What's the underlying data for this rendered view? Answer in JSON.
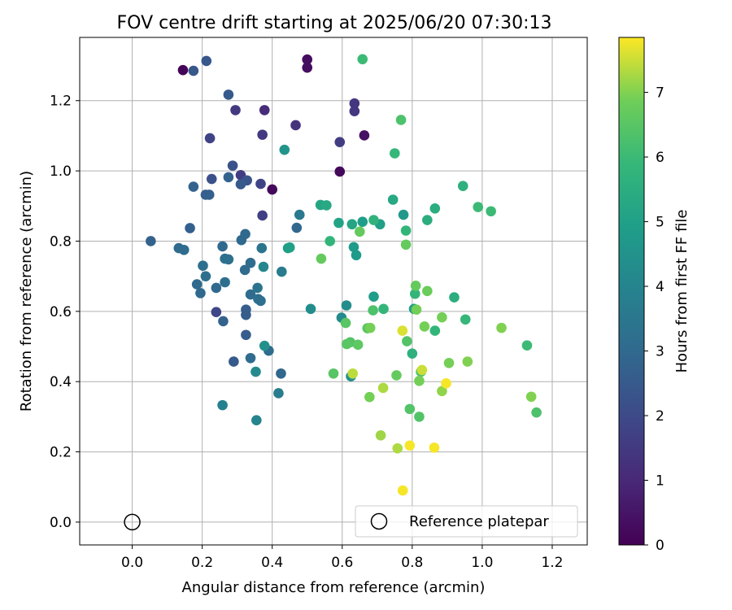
{
  "chart_data": {
    "type": "scatter",
    "title": "FOV centre drift starting at 2025/06/20 07:30:13",
    "xlabel": "Angular distance from reference (arcmin)",
    "ylabel": "Rotation from reference (arcmin)",
    "xlim": [
      -0.15,
      1.3
    ],
    "ylim": [
      -0.065,
      1.38
    ],
    "xticks": [
      "0.0",
      "0.2",
      "0.4",
      "0.6",
      "0.8",
      "1.0",
      "1.2"
    ],
    "yticks": [
      "0.0",
      "0.2",
      "0.4",
      "0.6",
      "0.8",
      "1.0",
      "1.2"
    ],
    "grid": true,
    "colorbar": {
      "label": "Hours from first FF file",
      "range": [
        0,
        7.85
      ],
      "ticks": [
        "0",
        "1",
        "2",
        "3",
        "4",
        "5",
        "6",
        "7"
      ],
      "colormap": "viridis"
    },
    "reference": {
      "label": "Reference platepar",
      "x": 0.0,
      "y": 0.0,
      "marker": "open-circle"
    },
    "legend_position": "lower-right",
    "points": [
      {
        "x": 0.145,
        "y": 1.287,
        "c": 0.1
      },
      {
        "x": 0.5,
        "y": 1.317,
        "c": 0.3
      },
      {
        "x": 0.5,
        "y": 1.294,
        "c": 0.3
      },
      {
        "x": 0.593,
        "y": 0.998,
        "c": 0.2
      },
      {
        "x": 0.4,
        "y": 0.947,
        "c": 0.2
      },
      {
        "x": 0.663,
        "y": 1.101,
        "c": 0.4
      },
      {
        "x": 0.378,
        "y": 1.173,
        "c": 1.1
      },
      {
        "x": 0.467,
        "y": 1.13,
        "c": 1.3
      },
      {
        "x": 0.635,
        "y": 1.192,
        "c": 1.4
      },
      {
        "x": 0.635,
        "y": 1.17,
        "c": 1.4
      },
      {
        "x": 0.295,
        "y": 1.173,
        "c": 1.5
      },
      {
        "x": 0.372,
        "y": 1.103,
        "c": 1.5
      },
      {
        "x": 0.593,
        "y": 1.082,
        "c": 1.6
      },
      {
        "x": 0.31,
        "y": 0.988,
        "c": 1.6
      },
      {
        "x": 0.372,
        "y": 0.873,
        "c": 1.7
      },
      {
        "x": 0.222,
        "y": 1.093,
        "c": 1.8
      },
      {
        "x": 0.367,
        "y": 0.963,
        "c": 1.8
      },
      {
        "x": 0.24,
        "y": 0.598,
        "c": 1.9
      },
      {
        "x": 0.287,
        "y": 1.015,
        "c": 2.2
      },
      {
        "x": 0.227,
        "y": 0.977,
        "c": 2.2
      },
      {
        "x": 0.328,
        "y": 0.973,
        "c": 2.3
      },
      {
        "x": 0.175,
        "y": 1.285,
        "c": 2.4
      },
      {
        "x": 0.212,
        "y": 1.313,
        "c": 2.4
      },
      {
        "x": 0.275,
        "y": 1.217,
        "c": 2.5
      },
      {
        "x": 0.31,
        "y": 0.962,
        "c": 2.5
      },
      {
        "x": 0.29,
        "y": 0.457,
        "c": 2.5
      },
      {
        "x": 0.325,
        "y": 0.533,
        "c": 2.6
      },
      {
        "x": 0.325,
        "y": 0.59,
        "c": 2.6
      },
      {
        "x": 0.325,
        "y": 0.605,
        "c": 2.6
      },
      {
        "x": 0.165,
        "y": 0.837,
        "c": 2.7
      },
      {
        "x": 0.21,
        "y": 0.932,
        "c": 2.7
      },
      {
        "x": 0.22,
        "y": 0.932,
        "c": 2.7
      },
      {
        "x": 0.175,
        "y": 0.955,
        "c": 2.8
      },
      {
        "x": 0.275,
        "y": 0.982,
        "c": 2.8
      },
      {
        "x": 0.053,
        "y": 0.8,
        "c": 2.8
      },
      {
        "x": 0.26,
        "y": 0.572,
        "c": 2.8
      },
      {
        "x": 0.425,
        "y": 0.423,
        "c": 2.9
      },
      {
        "x": 0.47,
        "y": 0.838,
        "c": 2.9
      },
      {
        "x": 0.185,
        "y": 0.677,
        "c": 3.0
      },
      {
        "x": 0.195,
        "y": 0.652,
        "c": 3.0
      },
      {
        "x": 0.24,
        "y": 0.667,
        "c": 3.0
      },
      {
        "x": 0.258,
        "y": 0.785,
        "c": 3.0
      },
      {
        "x": 0.323,
        "y": 0.82,
        "c": 3.0
      },
      {
        "x": 0.312,
        "y": 0.803,
        "c": 3.0
      },
      {
        "x": 0.133,
        "y": 0.78,
        "c": 3.1
      },
      {
        "x": 0.148,
        "y": 0.775,
        "c": 3.1
      },
      {
        "x": 0.322,
        "y": 0.718,
        "c": 3.1
      },
      {
        "x": 0.338,
        "y": 0.738,
        "c": 3.1
      },
      {
        "x": 0.338,
        "y": 0.648,
        "c": 3.1
      },
      {
        "x": 0.338,
        "y": 0.467,
        "c": 3.1
      },
      {
        "x": 0.39,
        "y": 0.488,
        "c": 3.1
      },
      {
        "x": 0.36,
        "y": 0.635,
        "c": 3.2
      },
      {
        "x": 0.367,
        "y": 0.63,
        "c": 3.2
      },
      {
        "x": 0.21,
        "y": 0.7,
        "c": 3.2
      },
      {
        "x": 0.202,
        "y": 0.73,
        "c": 3.2
      },
      {
        "x": 0.265,
        "y": 0.683,
        "c": 3.2
      },
      {
        "x": 0.265,
        "y": 0.75,
        "c": 3.3
      },
      {
        "x": 0.275,
        "y": 0.748,
        "c": 3.3
      },
      {
        "x": 0.37,
        "y": 0.78,
        "c": 3.4
      },
      {
        "x": 0.358,
        "y": 0.667,
        "c": 3.4
      },
      {
        "x": 0.478,
        "y": 0.875,
        "c": 3.6
      },
      {
        "x": 0.418,
        "y": 0.367,
        "c": 3.7
      },
      {
        "x": 0.427,
        "y": 0.713,
        "c": 3.7
      },
      {
        "x": 0.258,
        "y": 0.333,
        "c": 3.9
      },
      {
        "x": 0.355,
        "y": 0.29,
        "c": 4.0
      },
      {
        "x": 0.375,
        "y": 0.727,
        "c": 4.1
      },
      {
        "x": 0.353,
        "y": 0.428,
        "c": 4.2
      },
      {
        "x": 0.378,
        "y": 0.502,
        "c": 4.4
      },
      {
        "x": 0.51,
        "y": 0.607,
        "c": 4.3
      },
      {
        "x": 0.612,
        "y": 0.617,
        "c": 4.3
      },
      {
        "x": 0.598,
        "y": 0.582,
        "c": 4.2
      },
      {
        "x": 0.625,
        "y": 0.415,
        "c": 4.4
      },
      {
        "x": 0.435,
        "y": 1.06,
        "c": 4.6
      },
      {
        "x": 0.445,
        "y": 0.78,
        "c": 4.8
      },
      {
        "x": 0.633,
        "y": 0.783,
        "c": 4.8
      },
      {
        "x": 0.64,
        "y": 0.76,
        "c": 4.8
      },
      {
        "x": 0.775,
        "y": 0.875,
        "c": 4.7
      },
      {
        "x": 0.658,
        "y": 0.855,
        "c": 4.9
      },
      {
        "x": 0.69,
        "y": 0.642,
        "c": 4.9
      },
      {
        "x": 0.708,
        "y": 0.848,
        "c": 5.0
      },
      {
        "x": 0.805,
        "y": 0.607,
        "c": 5.0
      },
      {
        "x": 0.45,
        "y": 0.782,
        "c": 5.0
      },
      {
        "x": 0.59,
        "y": 0.852,
        "c": 5.1
      },
      {
        "x": 0.628,
        "y": 0.848,
        "c": 5.2
      },
      {
        "x": 0.538,
        "y": 0.903,
        "c": 5.2
      },
      {
        "x": 0.555,
        "y": 0.902,
        "c": 5.3
      },
      {
        "x": 0.745,
        "y": 0.918,
        "c": 5.3
      },
      {
        "x": 0.843,
        "y": 0.86,
        "c": 5.5
      },
      {
        "x": 0.865,
        "y": 0.893,
        "c": 5.5
      },
      {
        "x": 0.92,
        "y": 0.64,
        "c": 5.5
      },
      {
        "x": 0.945,
        "y": 0.957,
        "c": 5.6
      },
      {
        "x": 0.8,
        "y": 0.48,
        "c": 5.6
      },
      {
        "x": 0.69,
        "y": 0.86,
        "c": 5.7
      },
      {
        "x": 0.75,
        "y": 1.05,
        "c": 5.9
      },
      {
        "x": 0.565,
        "y": 0.8,
        "c": 5.8
      },
      {
        "x": 0.782,
        "y": 0.83,
        "c": 5.8
      },
      {
        "x": 0.718,
        "y": 0.607,
        "c": 5.8
      },
      {
        "x": 0.808,
        "y": 0.65,
        "c": 5.8
      },
      {
        "x": 0.865,
        "y": 0.545,
        "c": 5.8
      },
      {
        "x": 0.952,
        "y": 0.577,
        "c": 5.9
      },
      {
        "x": 0.988,
        "y": 0.897,
        "c": 6.0
      },
      {
        "x": 1.025,
        "y": 0.885,
        "c": 6.0
      },
      {
        "x": 0.658,
        "y": 1.318,
        "c": 6.0
      },
      {
        "x": 1.128,
        "y": 0.503,
        "c": 6.0
      },
      {
        "x": 0.768,
        "y": 1.145,
        "c": 6.3
      },
      {
        "x": 1.155,
        "y": 0.312,
        "c": 6.3
      },
      {
        "x": 0.688,
        "y": 0.603,
        "c": 6.3
      },
      {
        "x": 0.623,
        "y": 0.512,
        "c": 6.4
      },
      {
        "x": 0.785,
        "y": 0.515,
        "c": 6.4
      },
      {
        "x": 0.793,
        "y": 0.322,
        "c": 6.4
      },
      {
        "x": 0.82,
        "y": 0.3,
        "c": 6.4
      },
      {
        "x": 0.825,
        "y": 0.428,
        "c": 6.3
      },
      {
        "x": 0.575,
        "y": 0.423,
        "c": 6.5
      },
      {
        "x": 0.61,
        "y": 0.567,
        "c": 6.5
      },
      {
        "x": 0.613,
        "y": 0.507,
        "c": 6.5
      },
      {
        "x": 0.645,
        "y": 0.505,
        "c": 6.6
      },
      {
        "x": 0.672,
        "y": 0.552,
        "c": 6.5
      },
      {
        "x": 0.54,
        "y": 0.75,
        "c": 6.7
      },
      {
        "x": 0.65,
        "y": 0.827,
        "c": 6.7
      },
      {
        "x": 0.755,
        "y": 0.418,
        "c": 6.7
      },
      {
        "x": 0.782,
        "y": 0.79,
        "c": 6.7
      },
      {
        "x": 0.81,
        "y": 0.673,
        "c": 6.7
      },
      {
        "x": 0.843,
        "y": 0.658,
        "c": 6.8
      },
      {
        "x": 0.812,
        "y": 0.605,
        "c": 6.9
      },
      {
        "x": 0.82,
        "y": 0.402,
        "c": 6.9
      },
      {
        "x": 0.678,
        "y": 0.356,
        "c": 6.9
      },
      {
        "x": 0.68,
        "y": 0.553,
        "c": 6.9
      },
      {
        "x": 0.835,
        "y": 0.557,
        "c": 6.9
      },
      {
        "x": 0.885,
        "y": 0.583,
        "c": 6.9
      },
      {
        "x": 0.905,
        "y": 0.453,
        "c": 6.9
      },
      {
        "x": 0.958,
        "y": 0.457,
        "c": 7.0
      },
      {
        "x": 1.055,
        "y": 0.553,
        "c": 7.0
      },
      {
        "x": 1.14,
        "y": 0.357,
        "c": 7.0
      },
      {
        "x": 0.885,
        "y": 0.373,
        "c": 7.1
      },
      {
        "x": 0.71,
        "y": 0.247,
        "c": 7.2
      },
      {
        "x": 0.717,
        "y": 0.382,
        "c": 7.3
      },
      {
        "x": 0.758,
        "y": 0.21,
        "c": 7.3
      },
      {
        "x": 0.63,
        "y": 0.423,
        "c": 7.4
      },
      {
        "x": 0.828,
        "y": 0.433,
        "c": 7.5
      },
      {
        "x": 0.772,
        "y": 0.545,
        "c": 7.6
      },
      {
        "x": 0.897,
        "y": 0.395,
        "c": 7.8
      },
      {
        "x": 0.793,
        "y": 0.218,
        "c": 7.8
      },
      {
        "x": 0.863,
        "y": 0.212,
        "c": 7.8
      },
      {
        "x": 0.773,
        "y": 0.09,
        "c": 7.8
      }
    ]
  }
}
